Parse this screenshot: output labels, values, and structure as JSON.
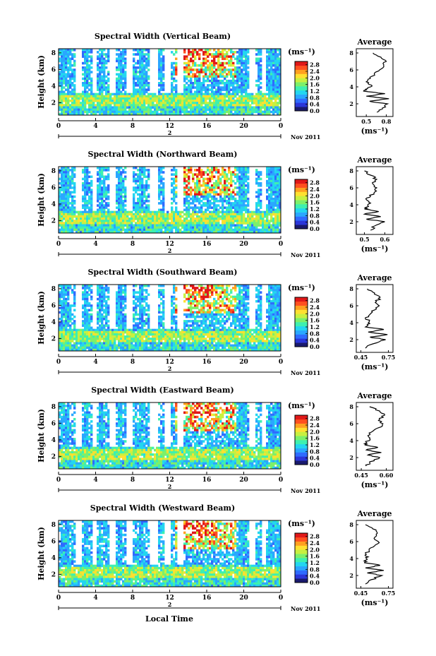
{
  "figure": {
    "xlabel": "Local Time",
    "colormap": [
      "#1a1a6e",
      "#2b36d9",
      "#2f6bff",
      "#2aa7ff",
      "#23d6f0",
      "#3ef0b0",
      "#7df06a",
      "#c8f040",
      "#ffe030",
      "#ffa020",
      "#ff5020",
      "#e01818"
    ],
    "unit_label": "(ms⁻¹)",
    "date_label": "Nov 2011",
    "day_label": "2"
  },
  "chart_data": [
    {
      "type": "heatmap",
      "title": "Spectral Width (Vertical Beam)",
      "ylabel": "Height (km)",
      "x_ticks": [
        "0",
        "4",
        "8",
        "12",
        "16",
        "20",
        "0"
      ],
      "y_ticks": [
        "2",
        "4",
        "6",
        "8"
      ],
      "xlim": [
        0,
        24
      ],
      "ylim": [
        0.5,
        8.5
      ],
      "colorbar": {
        "label": "(ms⁻¹)",
        "ticks": [
          "0.0",
          "0.4",
          "0.8",
          "1.2",
          "1.6",
          "2.0",
          "2.4",
          "2.8"
        ],
        "range": [
          0,
          3
        ]
      },
      "profile": {
        "type": "line",
        "title": "Average",
        "xlabel": "(ms⁻¹)",
        "x_ticks": [
          "0.5",
          "0.8"
        ],
        "x_tick_values": [
          0.5,
          0.8
        ],
        "xlim": [
          0.35,
          0.9
        ],
        "y_ticks": [
          "2",
          "4",
          "6",
          "8"
        ],
        "ylim": [
          0.5,
          8.5
        ],
        "heights": [
          1.0,
          1.5,
          2.0,
          2.3,
          2.6,
          2.9,
          3.2,
          3.5,
          3.8,
          4.2,
          4.6,
          5.0,
          5.5,
          6.0,
          6.5,
          7.0,
          7.5,
          8.0
        ],
        "values": [
          0.66,
          0.74,
          0.82,
          0.55,
          0.84,
          0.5,
          0.78,
          0.46,
          0.52,
          0.58,
          0.5,
          0.56,
          0.62,
          0.7,
          0.76,
          0.8,
          0.72,
          0.6
        ]
      }
    },
    {
      "type": "heatmap",
      "title": "Spectral Width (Northward Beam)",
      "ylabel": "Height (km)",
      "x_ticks": [
        "0",
        "4",
        "8",
        "12",
        "16",
        "20",
        "0"
      ],
      "y_ticks": [
        "2",
        "4",
        "6",
        "8"
      ],
      "xlim": [
        0,
        24
      ],
      "ylim": [
        0.5,
        8.5
      ],
      "colorbar": {
        "label": "(ms⁻¹)",
        "ticks": [
          "0.0",
          "0.4",
          "0.8",
          "1.2",
          "1.6",
          "2.0",
          "2.4",
          "2.8"
        ],
        "range": [
          0,
          3
        ]
      },
      "profile": {
        "type": "line",
        "title": "Average",
        "xlabel": "(ms⁻¹)",
        "x_ticks": [
          "0.5",
          "0.6"
        ],
        "x_tick_values": [
          0.5,
          0.6
        ],
        "xlim": [
          0.46,
          0.64
        ],
        "y_ticks": [
          "2",
          "4",
          "6",
          "8"
        ],
        "ylim": [
          0.5,
          8.5
        ],
        "heights": [
          1.0,
          1.5,
          2.0,
          2.3,
          2.6,
          2.9,
          3.2,
          3.5,
          3.8,
          4.2,
          4.6,
          5.0,
          5.5,
          6.0,
          6.5,
          7.0,
          7.5,
          8.0
        ],
        "values": [
          0.53,
          0.55,
          0.6,
          0.51,
          0.58,
          0.5,
          0.57,
          0.5,
          0.52,
          0.53,
          0.51,
          0.53,
          0.55,
          0.56,
          0.54,
          0.56,
          0.53,
          0.5
        ]
      }
    },
    {
      "type": "heatmap",
      "title": "Spectral Width (Southward Beam)",
      "ylabel": "Height (km)",
      "x_ticks": [
        "0",
        "4",
        "8",
        "12",
        "16",
        "20",
        "0"
      ],
      "y_ticks": [
        "2",
        "4",
        "6",
        "8"
      ],
      "xlim": [
        0,
        24
      ],
      "ylim": [
        0.5,
        8.5
      ],
      "colorbar": {
        "label": "(ms⁻¹)",
        "ticks": [
          "0.0",
          "0.4",
          "0.8",
          "1.2",
          "1.6",
          "2.0",
          "2.4",
          "2.8"
        ],
        "range": [
          0,
          3
        ]
      },
      "profile": {
        "type": "line",
        "title": "Average",
        "xlabel": "(ms⁻¹)",
        "x_ticks": [
          "0.45",
          "0.75"
        ],
        "x_tick_values": [
          0.45,
          0.75
        ],
        "xlim": [
          0.4,
          0.8
        ],
        "y_ticks": [
          "2",
          "4",
          "6",
          "8"
        ],
        "ylim": [
          0.5,
          8.5
        ],
        "heights": [
          1.0,
          1.5,
          2.0,
          2.3,
          2.6,
          2.9,
          3.2,
          3.5,
          3.8,
          4.2,
          4.6,
          5.0,
          5.5,
          6.0,
          6.5,
          7.0,
          7.5,
          8.0
        ],
        "values": [
          0.5,
          0.58,
          0.72,
          0.55,
          0.74,
          0.53,
          0.7,
          0.5,
          0.52,
          0.54,
          0.5,
          0.55,
          0.6,
          0.65,
          0.62,
          0.66,
          0.6,
          0.52
        ]
      }
    },
    {
      "type": "heatmap",
      "title": "Spectral Width (Eastward Beam)",
      "ylabel": "Height (km)",
      "x_ticks": [
        "0",
        "4",
        "8",
        "12",
        "16",
        "20",
        "0"
      ],
      "y_ticks": [
        "2",
        "4",
        "6",
        "8"
      ],
      "xlim": [
        0,
        24
      ],
      "ylim": [
        0.5,
        8.5
      ],
      "colorbar": {
        "label": "(ms⁻¹)",
        "ticks": [
          "0.0",
          "0.4",
          "0.8",
          "1.2",
          "1.6",
          "2.0",
          "2.4",
          "2.8"
        ],
        "range": [
          0,
          3
        ]
      },
      "profile": {
        "type": "line",
        "title": "Average",
        "xlabel": "(ms⁻¹)",
        "x_ticks": [
          "0.45",
          "0.60"
        ],
        "x_tick_values": [
          0.45,
          0.6
        ],
        "xlim": [
          0.42,
          0.64
        ],
        "y_ticks": [
          "2",
          "4",
          "6",
          "8"
        ],
        "ylim": [
          0.5,
          8.5
        ],
        "heights": [
          1.0,
          1.5,
          2.0,
          2.3,
          2.6,
          2.9,
          3.2,
          3.5,
          3.8,
          4.2,
          4.6,
          5.0,
          5.5,
          6.0,
          6.5,
          7.0,
          7.5,
          8.0
        ],
        "values": [
          0.48,
          0.5,
          0.56,
          0.49,
          0.57,
          0.48,
          0.55,
          0.47,
          0.48,
          0.5,
          0.49,
          0.51,
          0.55,
          0.58,
          0.56,
          0.59,
          0.56,
          0.5
        ]
      }
    },
    {
      "type": "heatmap",
      "title": "Spectral Width (Westward Beam)",
      "ylabel": "Height (km)",
      "x_ticks": [
        "0",
        "4",
        "8",
        "12",
        "16",
        "20",
        "0"
      ],
      "y_ticks": [
        "2",
        "4",
        "6",
        "8"
      ],
      "xlim": [
        0,
        24
      ],
      "ylim": [
        0.5,
        8.5
      ],
      "colorbar": {
        "label": "(ms⁻¹)",
        "ticks": [
          "0.0",
          "0.4",
          "0.8",
          "1.2",
          "1.6",
          "2.0",
          "2.4",
          "2.8"
        ],
        "range": [
          0,
          3
        ]
      },
      "profile": {
        "type": "line",
        "title": "Average",
        "xlabel": "(ms⁻¹)",
        "x_ticks": [
          "0.45",
          "0.75"
        ],
        "x_tick_values": [
          0.45,
          0.75
        ],
        "xlim": [
          0.4,
          0.8
        ],
        "y_ticks": [
          "2",
          "4",
          "6",
          "8"
        ],
        "ylim": [
          0.5,
          8.5
        ],
        "heights": [
          1.0,
          1.5,
          2.0,
          2.3,
          2.6,
          2.9,
          3.2,
          3.5,
          3.8,
          4.2,
          4.6,
          5.0,
          5.5,
          6.0,
          6.5,
          7.0,
          7.5,
          8.0
        ],
        "values": [
          0.5,
          0.56,
          0.68,
          0.52,
          0.7,
          0.5,
          0.66,
          0.49,
          0.5,
          0.53,
          0.5,
          0.54,
          0.6,
          0.64,
          0.6,
          0.63,
          0.58,
          0.5
        ]
      }
    }
  ]
}
